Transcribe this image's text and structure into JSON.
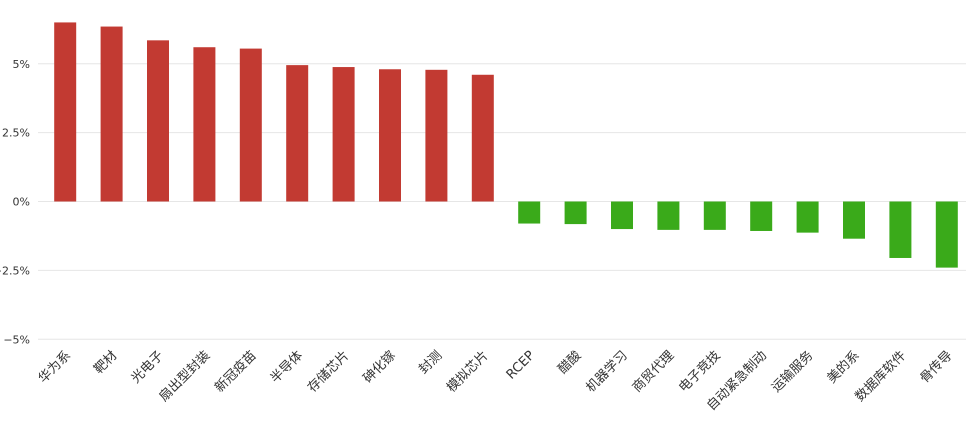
{
  "chart_data": {
    "type": "bar",
    "categories": [
      "华为系",
      "靶材",
      "光电子",
      "扇出型封装",
      "新冠疫苗",
      "半导体",
      "存储芯片",
      "砷化镓",
      "封测",
      "模拟芯片",
      "RCEP",
      "醋酸",
      "机器学习",
      "商贸代理",
      "电子竞技",
      "自动紧急制动",
      "运输服务",
      "美的系",
      "数据库软件",
      "骨传导"
    ],
    "values": [
      6.5,
      6.35,
      5.85,
      5.6,
      5.55,
      4.95,
      4.88,
      4.8,
      4.78,
      4.6,
      -0.8,
      -0.82,
      -1.0,
      -1.03,
      -1.03,
      -1.07,
      -1.13,
      -1.35,
      -2.05,
      -2.4
    ],
    "y_ticks": [
      -5,
      -2.5,
      0,
      2.5,
      5
    ],
    "y_tick_labels": [
      "−5%",
      "−2.5%",
      "0%",
      "2.5%",
      "5%"
    ],
    "ylim": [
      -5,
      6.9
    ],
    "grid": true,
    "legend": "none",
    "colors": {
      "positive": "#c23a32",
      "negative": "#3aaa1a"
    }
  }
}
